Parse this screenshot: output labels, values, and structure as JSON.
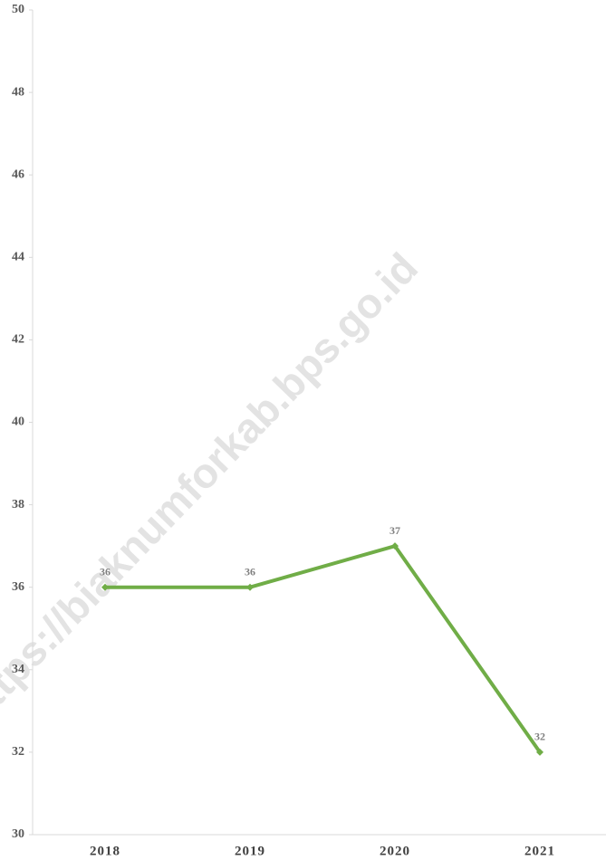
{
  "chart_data": {
    "type": "line",
    "categories": [
      "2018",
      "2019",
      "2020",
      "2021"
    ],
    "series": [
      {
        "name": null,
        "color": "#70ad47",
        "values": [
          36,
          36,
          37,
          32
        ]
      }
    ],
    "ylim": [
      30,
      50
    ],
    "yticks": [
      30,
      32,
      34,
      36,
      38,
      40,
      42,
      44,
      46,
      48,
      50
    ],
    "grid": false,
    "watermark": "https://biaknumforkab.bps.go.id"
  }
}
